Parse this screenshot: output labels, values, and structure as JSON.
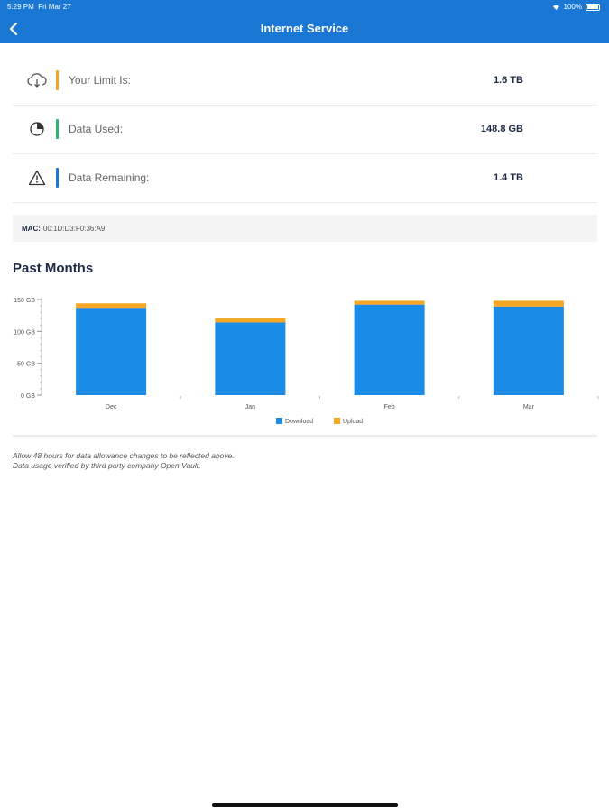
{
  "status_bar": {
    "time": "5:29 PM",
    "date": "Fri Mar 27",
    "battery": "100%"
  },
  "nav": {
    "title": "Internet Service",
    "back_icon": "chevron-left-icon"
  },
  "usage": [
    {
      "icon": "cloud-icon",
      "label": "Your Limit Is:",
      "value": "1.6 TB",
      "accent": "#f5a623"
    },
    {
      "icon": "pie-chart-icon",
      "label": "Data Used:",
      "value": "148.8 GB",
      "accent": "#2bb673"
    },
    {
      "icon": "warning-icon",
      "label": "Data Remaining:",
      "value": "1.4 TB",
      "accent": "#1a78d4"
    }
  ],
  "mac": {
    "label": "MAC:",
    "value": "00:1D:D3:F0:36:A9"
  },
  "past_months_title": "Past Months",
  "chart_data": {
    "type": "bar",
    "stacked": true,
    "categories": [
      "Dec",
      "Jan",
      "Feb",
      "Mar"
    ],
    "series": [
      {
        "name": "Download",
        "color": "#1a8be6",
        "values": [
          137,
          114,
          142,
          139
        ]
      },
      {
        "name": "Upload",
        "color": "#f5a623",
        "values": [
          7,
          7,
          6,
          9
        ]
      }
    ],
    "ylim": [
      0,
      150
    ],
    "yticks": [
      "0 GB",
      "50 GB",
      "100 GB",
      "150 GB"
    ],
    "ytick_values": [
      0,
      50,
      100,
      150
    ],
    "legend_position": "bottom"
  },
  "notes": [
    "Allow 48 hours for data allowance changes to be reflected above.",
    "Data usage verified by third party company Open Vault."
  ]
}
